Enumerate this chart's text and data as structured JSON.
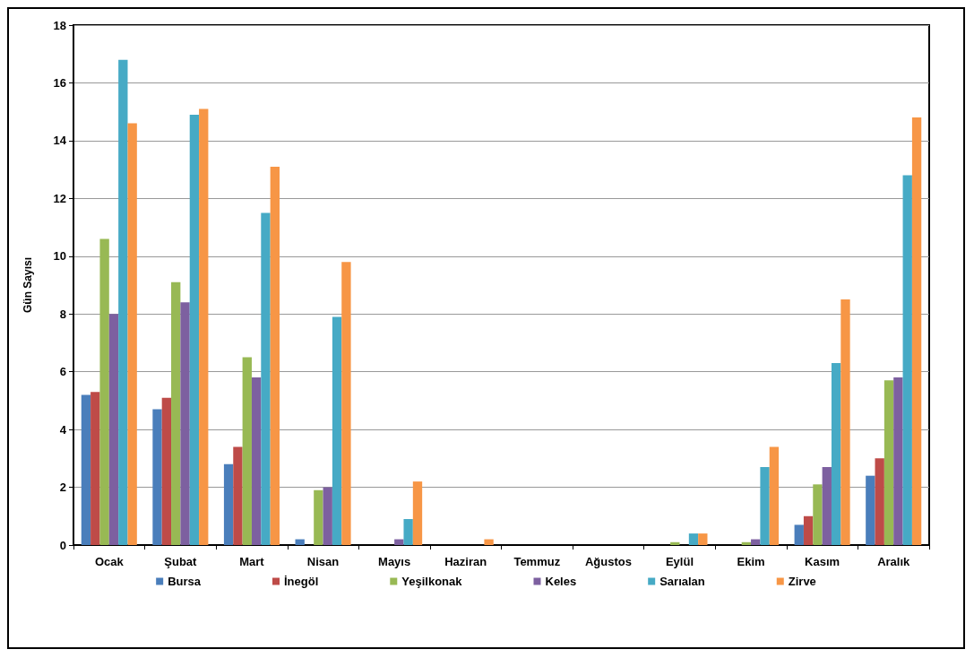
{
  "chart_data": {
    "type": "bar",
    "ylabel": "Gün Sayısı",
    "categories": [
      "Ocak",
      "Şubat",
      "Mart",
      "Nisan",
      "Mayıs",
      "Haziran",
      "Temmuz",
      "Ağustos",
      "Eylül",
      "Ekim",
      "Kasım",
      "Aralık"
    ],
    "series": [
      {
        "name": "Bursa",
        "color": "#4a7ebb",
        "values": [
          5.2,
          4.7,
          2.8,
          0.2,
          0,
          0,
          0,
          0,
          0,
          0,
          0.7,
          2.4
        ]
      },
      {
        "name": "İnegöl",
        "color": "#be4b48",
        "values": [
          5.3,
          5.1,
          3.4,
          0,
          0,
          0,
          0,
          0,
          0,
          0,
          1.0,
          3.0
        ]
      },
      {
        "name": "Yeşilkonak",
        "color": "#98b954",
        "values": [
          10.6,
          9.1,
          6.5,
          1.9,
          0,
          0,
          0,
          0,
          0.1,
          0.1,
          2.1,
          5.7
        ]
      },
      {
        "name": "Keles",
        "color": "#7d60a0",
        "values": [
          8.0,
          8.4,
          5.8,
          2.0,
          0.2,
          0,
          0,
          0,
          0,
          0.2,
          2.7,
          5.8
        ]
      },
      {
        "name": "Sarıalan",
        "color": "#46aac5",
        "values": [
          16.8,
          14.9,
          11.5,
          7.9,
          0.9,
          0,
          0,
          0,
          0.4,
          2.7,
          6.3,
          12.8
        ]
      },
      {
        "name": "Zirve",
        "color": "#f79646",
        "values": [
          14.6,
          15.1,
          13.1,
          9.8,
          2.2,
          0.2,
          0,
          0,
          0.4,
          3.4,
          8.5,
          14.8
        ]
      }
    ],
    "ylim": [
      0,
      18
    ],
    "yticks": [
      0,
      2,
      4,
      6,
      8,
      10,
      12,
      14,
      16,
      18
    ],
    "grid": "y",
    "legend": "bottom"
  }
}
